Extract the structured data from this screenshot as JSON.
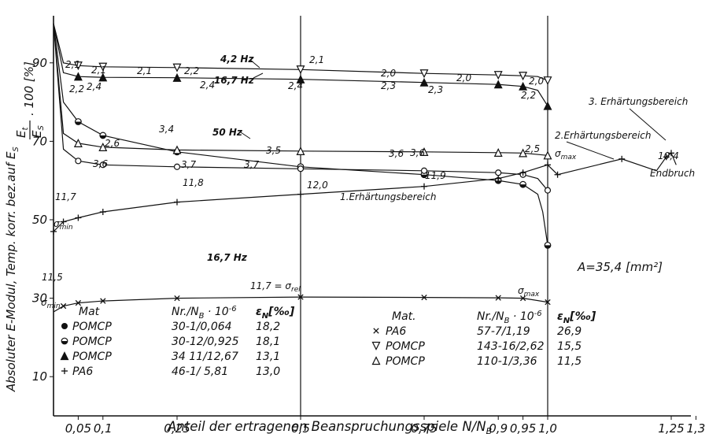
{
  "chart_data": {
    "type": "line",
    "xlabel": "Anteil der ertragenen Beanspruchungsspiele N/N",
    "xlabel_sub": "B",
    "ylabel": "Absoluter E-Modul, Temp. korr. bez.auf E",
    "ylabel_sub": "S",
    "ylabel_top": "E/E · 100 [%]",
    "ylabel_top_num": "E",
    "ylabel_top_num_sub": "t",
    "ylabel_top_den": "E",
    "ylabel_top_den_sub": "S",
    "ylabel_top_factor": ". 100 [%]",
    "x_ticks": [
      {
        "v": 0.05,
        "label": "0,05"
      },
      {
        "v": 0.1,
        "label": "0,1"
      },
      {
        "v": 0.25,
        "label": "0,25"
      },
      {
        "v": 0.5,
        "label": "0,5"
      },
      {
        "v": 0.75,
        "label": "0,75"
      },
      {
        "v": 0.9,
        "label": "0,9"
      },
      {
        "v": 0.95,
        "label": "0,95"
      },
      {
        "v": 1.0,
        "label": "1,0"
      },
      {
        "v": 1.25,
        "label": "1,25"
      },
      {
        "v": 1.3,
        "label": "1,3"
      }
    ],
    "y_ticks": [
      {
        "v": 10,
        "label": "10"
      },
      {
        "v": 30,
        "label": "30"
      },
      {
        "v": 50,
        "label": "50"
      },
      {
        "v": 70,
        "label": "70"
      },
      {
        "v": 90,
        "label": "90"
      }
    ],
    "xlim": [
      0,
      1.3
    ],
    "ylim": [
      0,
      100
    ],
    "grid_verticals": [
      0.5,
      1.0
    ],
    "series": [
      {
        "id": "s_down_tri",
        "marker": "tri-down",
        "x": [
          0,
          0.02,
          0.05,
          0.1,
          0.25,
          0.5,
          0.75,
          0.9,
          0.95,
          0.98,
          1.0
        ],
        "y": [
          100,
          90,
          89.3,
          89,
          88.8,
          88.3,
          87.3,
          86.9,
          86.7,
          86.5,
          85.5
        ],
        "mx": [
          0.05,
          0.1,
          0.25,
          0.5,
          0.75,
          0.9,
          0.95,
          1.0
        ]
      },
      {
        "id": "s_filled_tri",
        "marker": "tri-filled",
        "x": [
          0,
          0.02,
          0.05,
          0.1,
          0.25,
          0.5,
          0.75,
          0.9,
          0.95,
          0.98,
          1.0
        ],
        "y": [
          100,
          87.5,
          86.5,
          86.3,
          86.2,
          85.8,
          85,
          84.5,
          84,
          83,
          79
        ],
        "mx": [
          0.05,
          0.1,
          0.25,
          0.5,
          0.75,
          0.9,
          0.95,
          1.0
        ]
      },
      {
        "id": "s_half_circle",
        "marker": "circle-half",
        "x": [
          0,
          0.02,
          0.05,
          0.1,
          0.25,
          0.5,
          0.75,
          0.9,
          0.95,
          0.98,
          0.99,
          1.0
        ],
        "y": [
          100,
          80,
          75,
          71.5,
          67.3,
          63.5,
          61.5,
          60,
          59,
          56.5,
          52,
          43.5
        ],
        "mx": [
          0.05,
          0.1,
          0.25,
          0.5,
          0.75,
          0.9,
          0.95,
          1.0
        ]
      },
      {
        "id": "s_open_tri",
        "marker": "tri-up",
        "x": [
          0,
          0.02,
          0.05,
          0.1,
          0.25,
          0.5,
          0.75,
          0.9,
          0.95,
          1.0
        ],
        "y": [
          100,
          72,
          69.5,
          68.5,
          67.8,
          67.5,
          67.3,
          67.1,
          67,
          66.4
        ],
        "mx": [
          0.05,
          0.1,
          0.25,
          0.5,
          0.75,
          0.9,
          0.95,
          1.0
        ]
      },
      {
        "id": "s_open_circle",
        "marker": "circle-open",
        "x": [
          0,
          0.02,
          0.05,
          0.1,
          0.25,
          0.5,
          0.75,
          0.9,
          0.95,
          0.98,
          1.0
        ],
        "y": [
          100,
          68,
          65,
          64,
          63.5,
          63,
          62.5,
          62,
          61.5,
          60.5,
          57.5
        ],
        "mx": [
          0.05,
          0.1,
          0.25,
          0.5,
          0.75,
          0.9,
          0.95,
          1.0
        ]
      },
      {
        "id": "s_plus",
        "marker": "plus",
        "x": [
          0,
          0.02,
          0.05,
          0.1,
          0.25,
          0.5,
          0.75,
          0.9,
          0.95,
          1.0,
          1.02,
          1.15,
          1.22,
          1.24,
          1.25,
          1.26
        ],
        "y": [
          47,
          49.5,
          50.5,
          52,
          54.5,
          56.5,
          58.5,
          60.5,
          62,
          64,
          61.5,
          65.5,
          62.5,
          66,
          67,
          64
        ],
        "mx": [
          0,
          0.02,
          0.05,
          0.1,
          0.25,
          0.5,
          0.75,
          0.9,
          0.95,
          1.0,
          1.02,
          1.15,
          1.24,
          1.25
        ]
      },
      {
        "id": "s_cross",
        "marker": "cross",
        "x": [
          0,
          0.02,
          0.05,
          0.1,
          0.25,
          0.5,
          0.75,
          0.9,
          0.95,
          1.0
        ],
        "y": [
          26.5,
          28,
          28.8,
          29.3,
          30,
          30.3,
          30.2,
          30.1,
          30,
          29
        ],
        "mx": [
          0.02,
          0.05,
          0.1,
          0.25,
          0.5,
          0.75,
          0.9,
          0.95,
          1.0
        ]
      }
    ],
    "legend_left": {
      "header": [
        "Mat",
        "Nr./N",
        "B",
        "· 10",
        "-6",
        "ε",
        "N",
        "[‰]"
      ],
      "rows": [
        {
          "marker": "circle-filled",
          "mat": "POMCP",
          "nr": "30-1/0,064",
          "eps": "18,2"
        },
        {
          "marker": "circle-half",
          "mat": "POMCP",
          "nr": "30-12/0,925",
          "eps": "18,1"
        },
        {
          "marker": "tri-filled",
          "mat": "POMCP",
          "nr": "34 11/12,67",
          "eps": "13,1"
        },
        {
          "marker": "plus",
          "mat": "PA6",
          "nr": "46-1/ 5,81",
          "eps": "13,0"
        }
      ]
    },
    "legend_right": {
      "header": [
        "Mat.",
        "Nr./N",
        "B",
        "· 10",
        "-6",
        "ε",
        "N",
        "[‰]"
      ],
      "rows": [
        {
          "marker": "cross",
          "mat": "PA6",
          "nr": "57-7/1,19",
          "eps": "26,9"
        },
        {
          "marker": "tri-down",
          "mat": "POMCP",
          "nr": "143-16/2,62",
          "eps": "15,5"
        },
        {
          "marker": "tri-up",
          "mat": "POMCP",
          "nr": "110-1/3,36",
          "eps": "11,5"
        }
      ]
    },
    "annotations": {
      "hz_42": "4,2 Hz",
      "hz_167_top": "16,7 Hz",
      "hz_50": "50 Hz",
      "hz_167_mid": "16,7 Hz",
      "erh1": "1.Erhärtungsbereich",
      "erh2": "2.Erhärtungsbereich",
      "erh3": "3. Erhärtungsbereich",
      "endbruch": "Endbruch",
      "area": "A=35,4 [mm²]",
      "sigma": "σ",
      "sub_min": "min",
      "sub_max": "max",
      "orel": "11,7 = σ",
      "orel_sub": "rel",
      "val_21a": "2,1",
      "val_21b": "2,1",
      "val_21c": "2,1",
      "val_21d": "2,1",
      "val_22a": "2,2",
      "val_22b": "2,2",
      "val_22c": "2,2",
      "val_24a": "2,4",
      "val_24b": "2,4",
      "val_24c": "2,4",
      "val_20a": "2,0",
      "val_20b": "2,0",
      "val_20c": "2,0",
      "val_23": "2,3",
      "val_34": "3,4",
      "val_26": "2,6",
      "val_35": "3,5",
      "val_36a": "3,6",
      "val_36b": "3,6",
      "val_36c": "3,6",
      "val_37a": "3,7",
      "val_37b": "3,7",
      "val_25": "2,5",
      "val_117": "11,7",
      "val_118": "11,8",
      "val_120": "12,0",
      "val_119": "11,9",
      "val_115": "11,5",
      "val_104": "10,4"
    }
  }
}
